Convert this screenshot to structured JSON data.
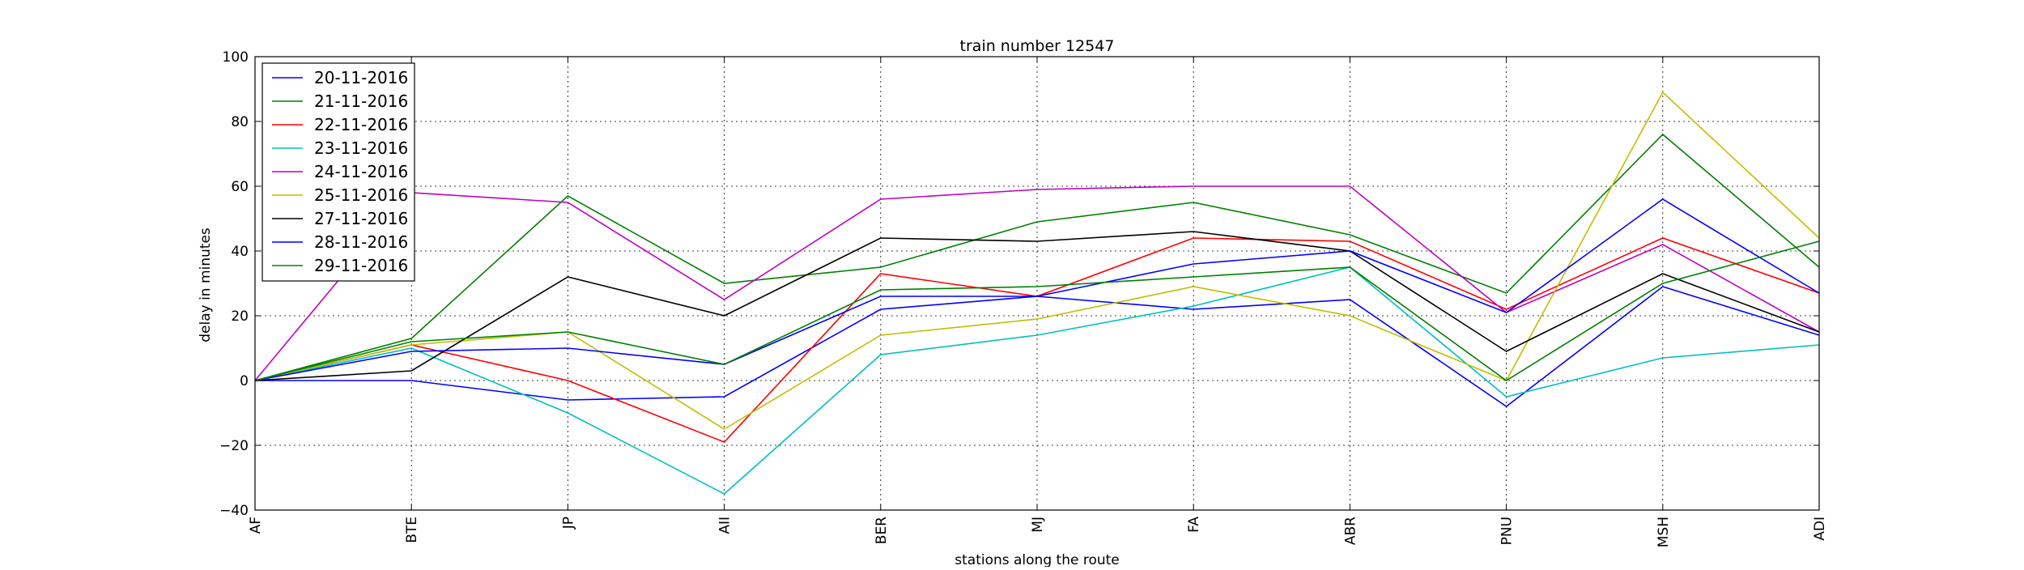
{
  "chart_data": {
    "type": "line",
    "title": "train number 12547",
    "xlabel": "stations along the route",
    "ylabel": "delay in minutes",
    "categories": [
      "AF",
      "BTE",
      "JP",
      "AII",
      "BER",
      "MJ",
      "FA",
      "ABR",
      "PNU",
      "MSH",
      "ADI"
    ],
    "ylim": [
      -40,
      100
    ],
    "yticks": [
      -40,
      -20,
      0,
      20,
      40,
      60,
      80,
      100
    ],
    "ytick_labels": [
      "−40",
      "−20",
      "0",
      "20",
      "40",
      "60",
      "80",
      "100"
    ],
    "grid": true,
    "legend_position": "top-left",
    "series": [
      {
        "name": "20-11-2016",
        "color": "#0000ff",
        "values": [
          0,
          0,
          -6,
          -5,
          22,
          26,
          22,
          25,
          -8,
          29,
          14
        ]
      },
      {
        "name": "21-11-2016",
        "color": "#008000",
        "values": [
          0,
          13,
          57,
          30,
          35,
          49,
          55,
          45,
          27,
          76,
          35
        ]
      },
      {
        "name": "22-11-2016",
        "color": "#ff0000",
        "values": [
          0,
          11,
          0,
          -19,
          33,
          26,
          44,
          43,
          22,
          44,
          27
        ]
      },
      {
        "name": "23-11-2016",
        "color": "#00bfbf",
        "values": [
          0,
          10,
          -10,
          -35,
          8,
          14,
          23,
          35,
          -5,
          7,
          11
        ]
      },
      {
        "name": "24-11-2016",
        "color": "#bf00bf",
        "values": [
          0,
          58,
          55,
          25,
          56,
          59,
          60,
          60,
          21,
          42,
          15
        ]
      },
      {
        "name": "25-11-2016",
        "color": "#bfbf00",
        "values": [
          0,
          11,
          15,
          -15,
          14,
          19,
          29,
          20,
          0,
          89,
          44
        ]
      },
      {
        "name": "27-11-2016",
        "color": "#000000",
        "values": [
          0,
          3,
          32,
          20,
          44,
          43,
          46,
          40,
          9,
          33,
          15
        ]
      },
      {
        "name": "28-11-2016",
        "color": "#0000ff",
        "values": [
          0,
          9,
          10,
          5,
          26,
          26,
          36,
          40,
          21,
          56,
          27
        ]
      },
      {
        "name": "29-11-2016",
        "color": "#008000",
        "values": [
          0,
          12,
          15,
          5,
          28,
          29,
          32,
          35,
          0,
          30,
          43
        ]
      }
    ]
  }
}
